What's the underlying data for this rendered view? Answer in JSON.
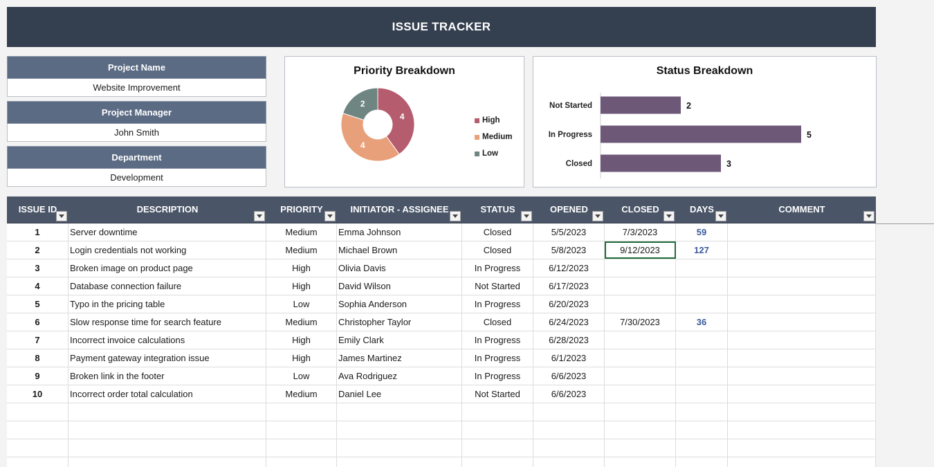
{
  "banner": {
    "title": "ISSUE TRACKER"
  },
  "info": {
    "project_name_label": "Project Name",
    "project_name_value": "Website Improvement",
    "project_manager_label": "Project Manager",
    "project_manager_value": "John Smith",
    "department_label": "Department",
    "department_value": "Development"
  },
  "charts": {
    "priority_title": "Priority Breakdown",
    "status_title": "Status Breakdown"
  },
  "chart_data": [
    {
      "type": "pie",
      "title": "Priority Breakdown",
      "categories": [
        "High",
        "Medium",
        "Low"
      ],
      "values": [
        4,
        4,
        2
      ],
      "colors": [
        "#b55d6e",
        "#e8a07a",
        "#6e8582"
      ],
      "legend": "right"
    },
    {
      "type": "bar",
      "title": "Status Breakdown",
      "orientation": "horizontal",
      "categories": [
        "Not Started",
        "In Progress",
        "Closed"
      ],
      "values": [
        2,
        5,
        3
      ],
      "color": "#6d5878",
      "xlim": [
        0,
        5
      ]
    }
  ],
  "table": {
    "columns": [
      "ISSUE ID",
      "DESCRIPTION",
      "PRIORITY",
      "INITIATOR - ASSIGNEE",
      "STATUS",
      "OPENED",
      "CLOSED",
      "DAYS",
      "COMMENT"
    ],
    "rows": [
      [
        "1",
        "Server downtime",
        "Medium",
        "Emma Johnson",
        "Closed",
        "5/5/2023",
        "7/3/2023",
        "59",
        ""
      ],
      [
        "2",
        "Login credentials not working",
        "Medium",
        "Michael Brown",
        "Closed",
        "5/8/2023",
        "9/12/2023",
        "127",
        ""
      ],
      [
        "3",
        "Broken image on product page",
        "High",
        "Olivia Davis",
        "In Progress",
        "6/12/2023",
        "",
        "",
        ""
      ],
      [
        "4",
        "Database connection failure",
        "High",
        "David Wilson",
        "Not Started",
        "6/17/2023",
        "",
        "",
        ""
      ],
      [
        "5",
        "Typo in the pricing table",
        "Low",
        "Sophia Anderson",
        "In Progress",
        "6/20/2023",
        "",
        "",
        ""
      ],
      [
        "6",
        "Slow response time for search feature",
        "Medium",
        "Christopher Taylor",
        "Closed",
        "6/24/2023",
        "7/30/2023",
        "36",
        ""
      ],
      [
        "7",
        "Incorrect invoice calculations",
        "High",
        "Emily Clark",
        "In Progress",
        "6/28/2023",
        "",
        "",
        ""
      ],
      [
        "8",
        "Payment gateway integration issue",
        "High",
        "James Martinez",
        "In Progress",
        "6/1/2023",
        "",
        "",
        ""
      ],
      [
        "9",
        "Broken link in the footer",
        "Low",
        "Ava Rodriguez",
        "In Progress",
        "6/6/2023",
        "",
        "",
        ""
      ],
      [
        "10",
        "Incorrect order total calculation",
        "Medium",
        "Daniel Lee",
        "Not Started",
        "6/6/2023",
        "",
        "",
        ""
      ],
      [
        "",
        "",
        "",
        "",
        "",
        "",
        "",
        "",
        ""
      ],
      [
        "",
        "",
        "",
        "",
        "",
        "",
        "",
        "",
        ""
      ],
      [
        "",
        "",
        "",
        "",
        "",
        "",
        "",
        "",
        ""
      ],
      [
        "",
        "",
        "",
        "",
        "",
        "",
        "",
        "",
        ""
      ]
    ]
  },
  "colors": {
    "banner": "#343f4f",
    "info_header": "#5b6b84",
    "table_header": "#4a5568",
    "days_text": "#3a5a9a",
    "bar": "#6d5878",
    "selection": "#1f6b3a"
  }
}
